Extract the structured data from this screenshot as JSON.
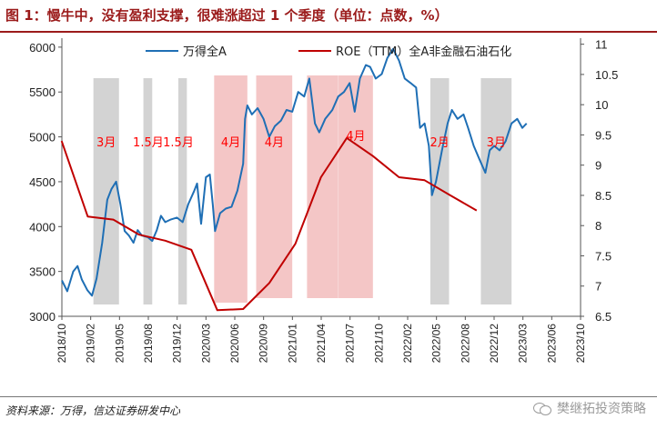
{
  "title": "图 1：慢牛中，没有盈利支撑，很难涨超过 1 个季度（单位：点数，%）",
  "source": "资料来源：万得，信达证券研发中心",
  "watermark": "樊继拓投资策略",
  "colors": {
    "index_line": "#1f6fb5",
    "roe_line": "#c00000",
    "gray_band": "#d3d3d3",
    "pink_band": "#f4c6c6",
    "band_label": "#ff0000",
    "title": "#9b1b1b"
  },
  "chart_data": {
    "type": "line",
    "x_ticks": [
      "2018/10",
      "2019/02",
      "2019/05",
      "2019/08",
      "2019/12",
      "2020/03",
      "2020/06",
      "2020/09",
      "2021/01",
      "2021/04",
      "2021/07",
      "2021/10",
      "2022/02",
      "2022/05",
      "2022/08",
      "2022/12",
      "2023/03",
      "2023/06",
      "2023/10"
    ],
    "xlim": [
      "2018-10-01",
      "2023-10-01"
    ],
    "y_left": {
      "lim": [
        3000,
        6100
      ],
      "ticks": [
        3000,
        3500,
        4000,
        4500,
        5000,
        5500,
        6000
      ]
    },
    "y_right": {
      "lim": [
        6.5,
        11.1
      ],
      "ticks": [
        "6.5",
        "7",
        "7.5",
        "8",
        "8.5",
        "9",
        "9.5",
        "10",
        "10.5",
        "11"
      ]
    },
    "series": [
      {
        "name": "万得全A",
        "axis": "left",
        "color": "#1f6fb5",
        "points": [
          [
            "2018-10-01",
            3400
          ],
          [
            "2018-10-20",
            3280
          ],
          [
            "2018-11-10",
            3500
          ],
          [
            "2018-11-25",
            3560
          ],
          [
            "2018-12-10",
            3410
          ],
          [
            "2018-12-30",
            3290
          ],
          [
            "2019-01-15",
            3230
          ],
          [
            "2019-01-31",
            3420
          ],
          [
            "2019-02-20",
            3820
          ],
          [
            "2019-03-10",
            4300
          ],
          [
            "2019-03-25",
            4420
          ],
          [
            "2019-04-10",
            4500
          ],
          [
            "2019-04-25",
            4250
          ],
          [
            "2019-05-10",
            3950
          ],
          [
            "2019-05-25",
            3900
          ],
          [
            "2019-06-10",
            3820
          ],
          [
            "2019-06-25",
            3960
          ],
          [
            "2019-07-10",
            3900
          ],
          [
            "2019-07-31",
            3880
          ],
          [
            "2019-08-15",
            3840
          ],
          [
            "2019-08-31",
            3960
          ],
          [
            "2019-09-15",
            4120
          ],
          [
            "2019-09-30",
            4050
          ],
          [
            "2019-10-20",
            4080
          ],
          [
            "2019-11-10",
            4100
          ],
          [
            "2019-11-30",
            4050
          ],
          [
            "2019-12-20",
            4250
          ],
          [
            "2020-01-10",
            4400
          ],
          [
            "2020-01-20",
            4480
          ],
          [
            "2020-02-03",
            4030
          ],
          [
            "2020-02-20",
            4550
          ],
          [
            "2020-03-05",
            4580
          ],
          [
            "2020-03-15",
            4250
          ],
          [
            "2020-03-23",
            3950
          ],
          [
            "2020-04-10",
            4150
          ],
          [
            "2020-04-30",
            4200
          ],
          [
            "2020-05-20",
            4220
          ],
          [
            "2020-06-10",
            4400
          ],
          [
            "2020-06-30",
            4700
          ],
          [
            "2020-07-07",
            5200
          ],
          [
            "2020-07-15",
            5350
          ],
          [
            "2020-07-31",
            5250
          ],
          [
            "2020-08-20",
            5320
          ],
          [
            "2020-09-10",
            5200
          ],
          [
            "2020-09-30",
            5000
          ],
          [
            "2020-10-20",
            5120
          ],
          [
            "2020-11-10",
            5180
          ],
          [
            "2020-11-30",
            5300
          ],
          [
            "2020-12-20",
            5280
          ],
          [
            "2021-01-10",
            5500
          ],
          [
            "2021-01-31",
            5450
          ],
          [
            "2021-02-18",
            5650
          ],
          [
            "2021-03-10",
            5150
          ],
          [
            "2021-03-25",
            5050
          ],
          [
            "2021-04-15",
            5200
          ],
          [
            "2021-05-10",
            5300
          ],
          [
            "2021-05-31",
            5450
          ],
          [
            "2021-06-20",
            5500
          ],
          [
            "2021-07-10",
            5600
          ],
          [
            "2021-07-28",
            5280
          ],
          [
            "2021-08-15",
            5650
          ],
          [
            "2021-09-05",
            5800
          ],
          [
            "2021-09-20",
            5780
          ],
          [
            "2021-10-10",
            5650
          ],
          [
            "2021-10-31",
            5700
          ],
          [
            "2021-11-20",
            5880
          ],
          [
            "2021-12-10",
            5980
          ],
          [
            "2021-12-31",
            5850
          ],
          [
            "2022-01-20",
            5650
          ],
          [
            "2022-02-10",
            5600
          ],
          [
            "2022-03-01",
            5550
          ],
          [
            "2022-03-15",
            5100
          ],
          [
            "2022-03-31",
            5150
          ],
          [
            "2022-04-15",
            4900
          ],
          [
            "2022-04-26",
            4350
          ],
          [
            "2022-05-10",
            4500
          ],
          [
            "2022-05-31",
            4850
          ],
          [
            "2022-06-20",
            5150
          ],
          [
            "2022-07-05",
            5300
          ],
          [
            "2022-07-25",
            5200
          ],
          [
            "2022-08-15",
            5250
          ],
          [
            "2022-08-31",
            5100
          ],
          [
            "2022-09-20",
            4900
          ],
          [
            "2022-10-10",
            4750
          ],
          [
            "2022-10-31",
            4600
          ],
          [
            "2022-11-15",
            4850
          ],
          [
            "2022-12-01",
            4900
          ],
          [
            "2022-12-20",
            4850
          ],
          [
            "2023-01-10",
            4950
          ],
          [
            "2023-01-31",
            5150
          ],
          [
            "2023-02-20",
            5200
          ],
          [
            "2023-03-10",
            5100
          ],
          [
            "2023-03-25",
            5150
          ]
        ]
      },
      {
        "name": "ROE（TTM）全A非金融石油石化",
        "axis": "right",
        "color": "#c00000",
        "points": [
          [
            "2018-09-30",
            9.4
          ],
          [
            "2018-12-31",
            8.15
          ],
          [
            "2019-03-31",
            8.1
          ],
          [
            "2019-06-30",
            7.85
          ],
          [
            "2019-09-30",
            7.75
          ],
          [
            "2019-12-31",
            7.6
          ],
          [
            "2020-03-31",
            6.6
          ],
          [
            "2020-06-30",
            6.62
          ],
          [
            "2020-09-30",
            7.05
          ],
          [
            "2020-12-31",
            7.7
          ],
          [
            "2021-03-31",
            8.8
          ],
          [
            "2021-06-30",
            9.45
          ],
          [
            "2021-09-30",
            9.15
          ],
          [
            "2021-12-31",
            8.8
          ],
          [
            "2022-03-31",
            8.75
          ],
          [
            "2022-06-30",
            8.5
          ],
          [
            "2022-09-30",
            8.25
          ]
        ]
      }
    ],
    "bands": [
      {
        "start": "2019-01-20",
        "end": "2019-04-20",
        "color": "gray",
        "label": "3月"
      },
      {
        "start": "2019-07-15",
        "end": "2019-08-15",
        "color": "gray",
        "label": ""
      },
      {
        "start": "2019-11-15",
        "end": "2019-12-15",
        "color": "gray",
        "label": ""
      },
      {
        "start": "2020-03-20",
        "end": "2020-07-15",
        "color": "pink",
        "label": "4月"
      },
      {
        "start": "2020-08-15",
        "end": "2020-12-20",
        "color": "pink",
        "label": "4月"
      },
      {
        "start": "2021-02-10",
        "end": "2021-05-31",
        "color": "pink",
        "label": ""
      },
      {
        "start": "2021-06-01",
        "end": "2021-09-30",
        "color": "pink",
        "label": "4月"
      },
      {
        "start": "2022-04-20",
        "end": "2022-06-25",
        "color": "gray",
        "label": "2月"
      },
      {
        "start": "2022-10-15",
        "end": "2023-01-31",
        "color": "gray",
        "label": "3月"
      }
    ],
    "band_texts": [
      {
        "text": "1.5月",
        "date": "2019-08-01"
      },
      {
        "text": "1.5月",
        "date": "2019-11-15"
      }
    ],
    "legend": {
      "placement": "top",
      "entries": [
        "万得全A",
        "ROE（TTM）全A非金融石油石化"
      ]
    }
  }
}
